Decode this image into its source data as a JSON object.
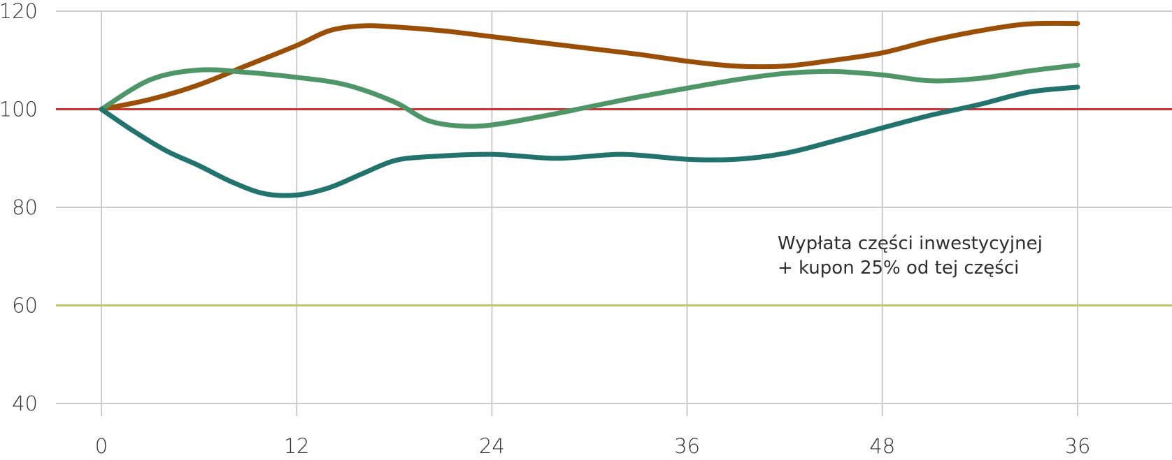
{
  "chart_data": {
    "type": "line",
    "title": "",
    "xlabel": "",
    "ylabel": "",
    "x_tick_labels": [
      "0",
      "12",
      "24",
      "36",
      "48",
      "36"
    ],
    "y_ticks": [
      40,
      60,
      80,
      100,
      120
    ],
    "ylim": [
      40,
      120
    ],
    "grid": true,
    "reference_lines": [
      {
        "y": 100,
        "color": "#d32f2f"
      },
      {
        "y": 60,
        "color": "#c2c56a"
      }
    ],
    "annotation": {
      "lines": [
        "Wypłata części inwestycyjnej",
        "+ kupon 25% od tej części"
      ]
    },
    "series": [
      {
        "color": "#9a4e06",
        "points": [
          [
            0,
            100
          ],
          [
            3,
            102
          ],
          [
            6,
            105
          ],
          [
            9,
            109
          ],
          [
            12,
            113
          ],
          [
            14,
            116
          ],
          [
            16,
            117
          ],
          [
            18,
            116.8
          ],
          [
            21,
            116
          ],
          [
            24,
            114.8
          ],
          [
            27,
            113.6
          ],
          [
            30,
            112.4
          ],
          [
            33,
            111.2
          ],
          [
            36,
            109.8
          ],
          [
            39,
            108.8
          ],
          [
            42,
            108.8
          ],
          [
            45,
            110
          ],
          [
            48,
            111.5
          ],
          [
            51,
            114
          ],
          [
            54,
            116
          ],
          [
            57,
            117.4
          ],
          [
            60,
            117.5
          ]
        ]
      },
      {
        "color": "#4e9668",
        "points": [
          [
            0,
            100
          ],
          [
            3,
            106
          ],
          [
            6,
            108
          ],
          [
            9,
            107.5
          ],
          [
            12,
            106.5
          ],
          [
            15,
            105
          ],
          [
            18,
            101.5
          ],
          [
            20,
            97.8
          ],
          [
            22,
            96.6
          ],
          [
            24,
            96.8
          ],
          [
            27,
            98.5
          ],
          [
            30,
            100.5
          ],
          [
            33,
            102.5
          ],
          [
            36,
            104.3
          ],
          [
            39,
            106
          ],
          [
            42,
            107.3
          ],
          [
            45,
            107.7
          ],
          [
            48,
            107
          ],
          [
            51,
            105.8
          ],
          [
            54,
            106.3
          ],
          [
            57,
            107.8
          ],
          [
            60,
            109
          ]
        ]
      },
      {
        "color": "#22736d",
        "points": [
          [
            0,
            100
          ],
          [
            2,
            95.5
          ],
          [
            4,
            91.5
          ],
          [
            6,
            88.5
          ],
          [
            8,
            85.2
          ],
          [
            10,
            82.8
          ],
          [
            12,
            82.5
          ],
          [
            14,
            84
          ],
          [
            16,
            86.8
          ],
          [
            18,
            89.5
          ],
          [
            20,
            90.3
          ],
          [
            24,
            90.8
          ],
          [
            28,
            90
          ],
          [
            32,
            90.8
          ],
          [
            36,
            89.8
          ],
          [
            39,
            89.8
          ],
          [
            42,
            91
          ],
          [
            45,
            93.5
          ],
          [
            48,
            96.2
          ],
          [
            51,
            98.8
          ],
          [
            54,
            101
          ],
          [
            57,
            103.5
          ],
          [
            60,
            104.5
          ]
        ]
      }
    ]
  }
}
